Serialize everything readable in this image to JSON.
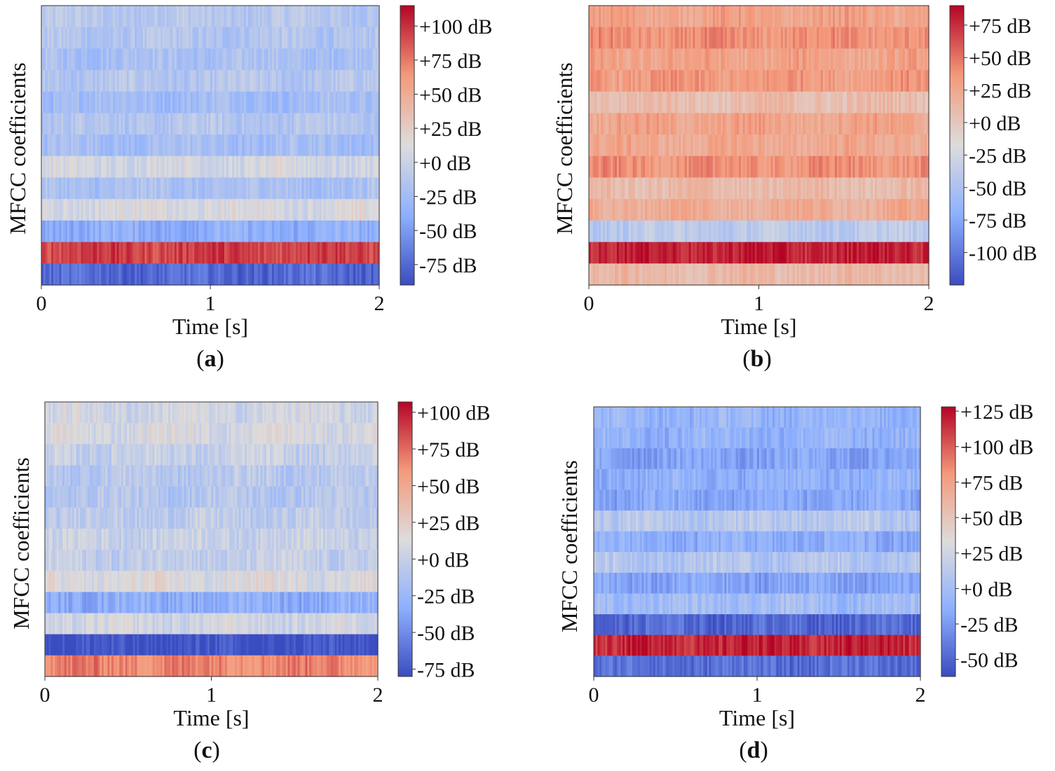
{
  "figure": {
    "description_free": true,
    "xlabel": "Time [s]",
    "ylabel": "MFCC coefficients",
    "panel_label_open": "(",
    "panel_label_close": ")"
  },
  "chart_data": [
    {
      "panel": "a",
      "type": "heatmap",
      "xlabel": "Time [s]",
      "ylabel": "MFCC coefficients",
      "xlim": [
        0,
        2
      ],
      "xticks": [
        "0",
        "1",
        "2"
      ],
      "n_coefficients": 13,
      "n_frames": 170,
      "band_levels_top_to_bottom": [
        -12,
        -15,
        -20,
        -14,
        -24,
        -14,
        -23,
        6,
        -20,
        9,
        -38,
        95,
        -75
      ],
      "colorbar": {
        "vmin": -90,
        "vmax": 115,
        "ticks": [
          100,
          75,
          50,
          25,
          0,
          -25,
          -50,
          -75
        ],
        "tick_labels": [
          "+100 dB",
          "+75 dB",
          "+50 dB",
          "+25 dB",
          "+0 dB",
          "-25 dB",
          "-50 dB",
          "-75 dB"
        ]
      }
    },
    {
      "panel": "b",
      "type": "heatmap",
      "xlabel": "Time [s]",
      "ylabel": "MFCC coefficients",
      "xlim": [
        0,
        2
      ],
      "xticks": [
        "0",
        "1",
        "2"
      ],
      "n_coefficients": 13,
      "n_frames": 170,
      "band_levels_top_to_bottom": [
        28,
        38,
        28,
        34,
        8,
        28,
        24,
        38,
        10,
        22,
        -40,
        80,
        12
      ],
      "colorbar": {
        "vmin": -125,
        "vmax": 90,
        "ticks": [
          75,
          50,
          25,
          0,
          -25,
          -50,
          -75,
          -100
        ],
        "tick_labels": [
          "+75 dB",
          "+50 dB",
          "+25 dB",
          "+0 dB",
          "-25 dB",
          "-50 dB",
          "-75 dB",
          "-100 dB"
        ]
      }
    },
    {
      "panel": "c",
      "type": "heatmap",
      "xlabel": "Time [s]",
      "ylabel": "MFCC coefficients",
      "xlim": [
        0,
        2
      ],
      "xticks": [
        "0",
        "1",
        "2"
      ],
      "n_coefficients": 13,
      "n_frames": 170,
      "band_levels_top_to_bottom": [
        6,
        10,
        0,
        -8,
        -10,
        -5,
        2,
        -2,
        12,
        -32,
        6,
        -78,
        68
      ],
      "colorbar": {
        "vmin": -80,
        "vmax": 107,
        "ticks": [
          100,
          75,
          50,
          25,
          0,
          -25,
          -50,
          -75
        ],
        "tick_labels": [
          "+100 dB",
          "+75 dB",
          "+50 dB",
          "+25 dB",
          "+0 dB",
          "-25 dB",
          "-50 dB",
          "-75 dB"
        ]
      }
    },
    {
      "panel": "d",
      "type": "heatmap",
      "xlabel": "Time [s]",
      "ylabel": "MFCC coefficients",
      "xlim": [
        0,
        2
      ],
      "xticks": [
        "0",
        "1",
        "2"
      ],
      "n_coefficients": 13,
      "n_frames": 170,
      "band_levels_top_to_bottom": [
        -8,
        -10,
        -20,
        -12,
        -18,
        10,
        -14,
        8,
        -20,
        -2,
        -48,
        118,
        -45
      ],
      "colorbar": {
        "vmin": -62,
        "vmax": 128,
        "ticks": [
          125,
          100,
          75,
          50,
          25,
          0,
          -25,
          -50
        ],
        "tick_labels": [
          "+125 dB",
          "+100 dB",
          "+75 dB",
          "+50 dB",
          "+25 dB",
          "+0 dB",
          "-25 dB",
          "-50 dB"
        ]
      }
    }
  ]
}
